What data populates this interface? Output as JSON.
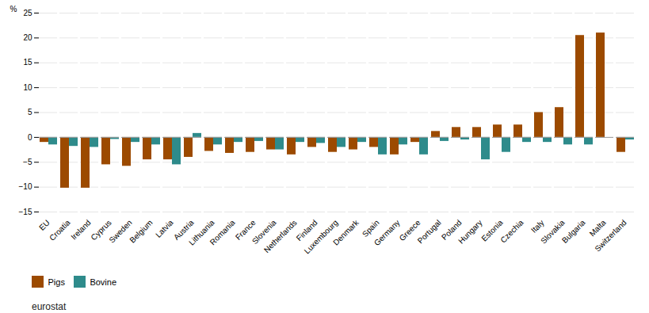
{
  "chart_data": {
    "type": "bar",
    "categories": [
      "EU",
      "Croatia",
      "Ireland",
      "Cyprus",
      "Sweden",
      "Belgium",
      "Latvia",
      "Austria",
      "Lithuania",
      "Romania",
      "France",
      "Slovenia",
      "Netherlands",
      "Finland",
      "Luxembourg",
      "Denmark",
      "Spain",
      "Germany",
      "Greece",
      "Portugal",
      "Poland",
      "Hungary",
      "Estonia",
      "Czechia",
      "Italy",
      "Slovakia",
      "Bulgaria",
      "Malta",
      "Switzerland"
    ],
    "series": [
      {
        "name": "Pigs",
        "color": "#9C4A00",
        "values": [
          -1.0,
          -10.2,
          -10.2,
          -5.5,
          -5.8,
          -4.5,
          -4.5,
          -4.0,
          -2.8,
          -3.2,
          -3.0,
          -2.5,
          -3.5,
          -2.0,
          -3.0,
          -2.5,
          -2.0,
          -3.5,
          -1.0,
          1.2,
          2.0,
          2.0,
          2.5,
          2.5,
          5.0,
          6.0,
          20.5,
          21.0,
          -3.0
        ]
      },
      {
        "name": "Bovine",
        "color": "#2E8B8B",
        "values": [
          -1.5,
          -1.8,
          -2.0,
          -0.4,
          -1.0,
          -1.5,
          -5.5,
          0.8,
          -1.5,
          -1.0,
          -0.8,
          -2.5,
          -1.0,
          -1.2,
          -2.0,
          -1.0,
          -3.5,
          -1.5,
          -3.5,
          -0.8,
          -0.5,
          -4.5,
          -3.0,
          -1.0,
          -1.0,
          -1.5,
          -1.5,
          0.0,
          -0.5
        ]
      }
    ],
    "ylabel": "%",
    "ylim": [
      -15,
      25
    ],
    "yticks": [
      -15,
      -10,
      -5,
      0,
      5,
      10,
      15,
      20,
      25
    ],
    "grid": true,
    "legend": "lower left",
    "caption": "eurostat"
  }
}
